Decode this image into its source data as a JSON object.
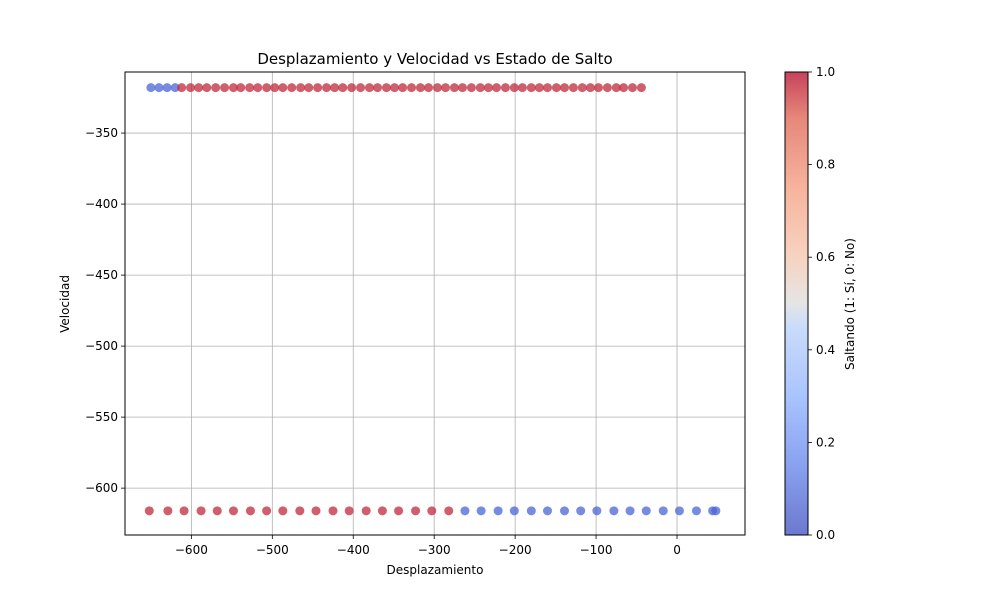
{
  "chart_data": {
    "type": "scatter",
    "title": "Desplazamiento y Velocidad vs Estado de Salto",
    "xlabel": "Desplazamiento",
    "ylabel": "Velocidad",
    "xlim": [
      -682,
      84
    ],
    "ylim": [
      -633,
      -307
    ],
    "xticks": [
      -600,
      -500,
      -400,
      -300,
      -200,
      -100,
      0
    ],
    "yticks": [
      -350,
      -400,
      -450,
      -500,
      -550,
      -600
    ],
    "xtick_labels": [
      "−600",
      "−500",
      "−400",
      "−300",
      "−200",
      "−100",
      "0"
    ],
    "ytick_labels": [
      "−350",
      "−400",
      "−450",
      "−500",
      "−550",
      "−600"
    ],
    "grid": true,
    "colorbar": {
      "label": "Saltando (1: Sí, 0: No)",
      "min": 0.0,
      "max": 1.0,
      "ticks": [
        0.0,
        0.2,
        0.4,
        0.6,
        0.8,
        1.0
      ],
      "tick_labels": [
        "0.0",
        "0.2",
        "0.4",
        "0.6",
        "0.8",
        "1.0"
      ]
    },
    "colors": {
      "jumping": "#c0283b",
      "not_jumping": "#4a64d6"
    },
    "series": [
      {
        "y": -318,
        "x": [
          -650,
          -640,
          -630,
          -620,
          -612,
          -601,
          -591,
          -581,
          -570,
          -559,
          -548,
          -539,
          -528,
          -518,
          -507,
          -497,
          -487,
          -476,
          -465,
          -455,
          -444,
          -433,
          -423,
          -413,
          -402,
          -391,
          -380,
          -370,
          -359,
          -349,
          -339,
          -328,
          -317,
          -307,
          -296,
          -286,
          -275,
          -265,
          -254,
          -243,
          -233,
          -223,
          -212,
          -201,
          -191,
          -180,
          -170,
          -160,
          -149,
          -139,
          -128,
          -117,
          -107,
          -97,
          -86,
          -75,
          -66,
          -55,
          -44
        ],
        "jumping": [
          0,
          0,
          0,
          0,
          1,
          1,
          1,
          1,
          1,
          1,
          1,
          1,
          1,
          1,
          1,
          1,
          1,
          1,
          1,
          1,
          1,
          1,
          1,
          1,
          1,
          1,
          1,
          1,
          1,
          1,
          1,
          1,
          1,
          1,
          1,
          1,
          1,
          1,
          1,
          1,
          1,
          1,
          1,
          1,
          1,
          1,
          1,
          1,
          1,
          1,
          1,
          1,
          1,
          1,
          1,
          1,
          1,
          1,
          1
        ]
      },
      {
        "y": -616,
        "x": [
          -652,
          -629,
          -609,
          -588,
          -568,
          -548,
          -527,
          -507,
          -487,
          -466,
          -446,
          -425,
          -405,
          -384,
          -364,
          -344,
          -323,
          -303,
          -282,
          -262,
          -242,
          -221,
          -201,
          -180,
          -160,
          -139,
          -119,
          -99,
          -78,
          -58,
          -38,
          -17,
          3,
          24,
          44,
          48
        ],
        "jumping": [
          1,
          1,
          1,
          1,
          1,
          1,
          1,
          1,
          1,
          1,
          1,
          1,
          1,
          1,
          1,
          1,
          1,
          1,
          1,
          0,
          0,
          0,
          0,
          0,
          0,
          0,
          0,
          0,
          0,
          0,
          0,
          0,
          0,
          0,
          0,
          0
        ]
      }
    ]
  }
}
